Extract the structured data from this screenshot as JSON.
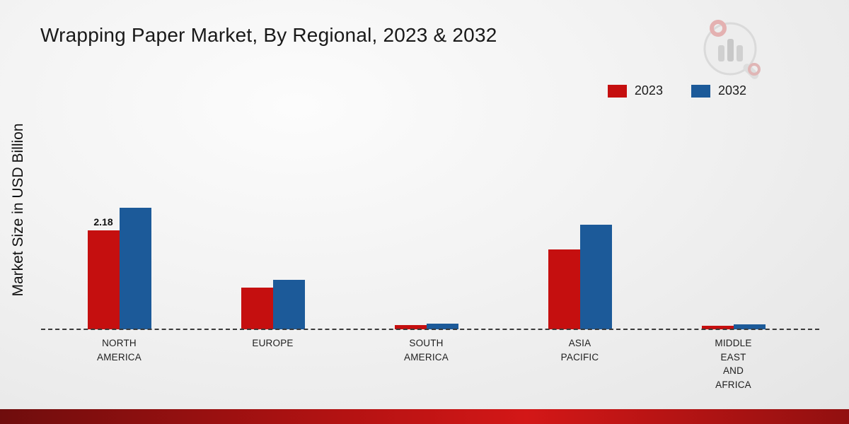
{
  "title": "Wrapping Paper Market, By Regional, 2023 & 2032",
  "y_axis_label": "Market Size in USD Billion",
  "category_labels": [
    "NORTH\nAMERICA",
    "EUROPE",
    "SOUTH\nAMERICA",
    "ASIA\nPACIFIC",
    "MIDDLE\nEAST\nAND\nAFRICA"
  ],
  "colors": {
    "series_2023": "#c50f0f",
    "series_2032": "#1c5a99",
    "accent_strip": "#b31212"
  },
  "chart_data": {
    "type": "bar",
    "title": "Wrapping Paper Market, By Regional, 2023 & 2032",
    "xlabel": "",
    "ylabel": "Market Size in USD Billion",
    "ylim": [
      0,
      3
    ],
    "grid": false,
    "legend_position": "top-right",
    "categories": [
      "NORTH AMERICA",
      "EUROPE",
      "SOUTH AMERICA",
      "ASIA PACIFIC",
      "MIDDLE EAST AND AFRICA"
    ],
    "series": [
      {
        "name": "2023",
        "color": "#c50f0f",
        "values": [
          2.18,
          0.92,
          0.1,
          1.76,
          0.08
        ]
      },
      {
        "name": "2032",
        "color": "#1c5a99",
        "values": [
          2.68,
          1.1,
          0.13,
          2.32,
          0.11
        ]
      }
    ],
    "data_labels": [
      {
        "series": "2023",
        "category": "NORTH AMERICA",
        "text": "2.18"
      }
    ]
  }
}
